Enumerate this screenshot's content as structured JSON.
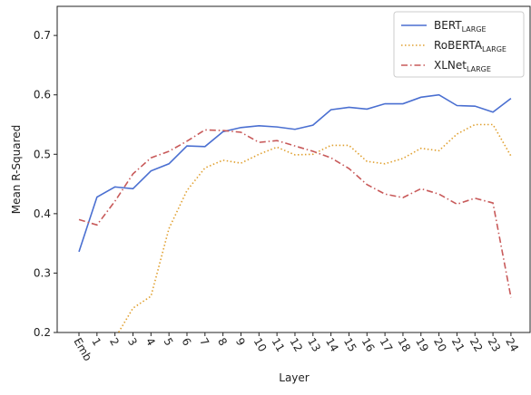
{
  "chart_data": {
    "type": "line",
    "x_label": "Layer",
    "y_label": "Mean R-Squared",
    "categories": [
      "Emb",
      "1",
      "2",
      "3",
      "4",
      "5",
      "6",
      "7",
      "8",
      "9",
      "10",
      "11",
      "12",
      "13",
      "14",
      "15",
      "16",
      "17",
      "18",
      "19",
      "20",
      "21",
      "22",
      "23",
      "24"
    ],
    "series": [
      {
        "name": "BERT",
        "name_sub": "LARGE",
        "color": "#4a6fd1",
        "dash": "solid",
        "values": [
          0.336,
          0.428,
          0.445,
          0.442,
          0.472,
          0.484,
          0.514,
          0.513,
          0.538,
          0.545,
          0.548,
          0.546,
          0.542,
          0.549,
          0.575,
          0.579,
          0.576,
          0.585,
          0.585,
          0.596,
          0.6,
          0.582,
          0.581,
          0.571,
          0.594
        ]
      },
      {
        "name": "RoBERTA",
        "name_sub": "LARGE",
        "color": "#e0a030",
        "dash": "dotted",
        "values": [
          null,
          null,
          0.19,
          0.241,
          0.261,
          0.375,
          0.439,
          0.477,
          0.49,
          0.485,
          0.5,
          0.512,
          0.499,
          0.5,
          0.515,
          0.515,
          0.488,
          0.484,
          0.493,
          0.51,
          0.506,
          0.534,
          0.55,
          0.55,
          0.497
        ]
      },
      {
        "name": "XLNet",
        "name_sub": "LARGE",
        "color": "#c85a5a",
        "dash": "dashdot",
        "values": [
          0.39,
          0.381,
          0.421,
          0.467,
          0.494,
          0.505,
          0.522,
          0.541,
          0.54,
          0.537,
          0.52,
          0.523,
          0.514,
          0.505,
          0.494,
          0.476,
          0.449,
          0.433,
          0.427,
          0.442,
          0.433,
          0.416,
          0.426,
          0.418,
          0.259
        ]
      }
    ],
    "ylim": [
      0.2,
      0.749
    ],
    "yticks": [
      0.2,
      0.3,
      0.4,
      0.5,
      0.6,
      0.7
    ],
    "grid": false,
    "legend": "upper right"
  }
}
